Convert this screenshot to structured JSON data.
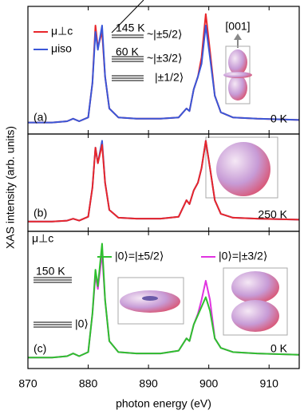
{
  "chart_data": [
    {
      "type": "line",
      "xlim": [
        870,
        915
      ],
      "ylim": [
        0,
        1
      ],
      "x": [
        870,
        874,
        876.5,
        877.5,
        878.5,
        880,
        880.7,
        881.2,
        881.6,
        882.3,
        882.8,
        883.5,
        885,
        888,
        892,
        895,
        896.3,
        896.8,
        897.5,
        898.2,
        898.8,
        899.5,
        900.2,
        901,
        902,
        904,
        908,
        915
      ],
      "series": [
        {
          "name": "μ⊥c",
          "color": "#e8262b",
          "values": [
            0.09,
            0.09,
            0.1,
            0.12,
            0.1,
            0.13,
            0.4,
            0.85,
            0.68,
            0.8,
            0.45,
            0.2,
            0.13,
            0.12,
            0.12,
            0.13,
            0.2,
            0.18,
            0.35,
            0.45,
            0.6,
            0.94,
            0.65,
            0.3,
            0.17,
            0.13,
            0.12,
            0.11
          ]
        },
        {
          "name": "μiso",
          "color": "#3a57d8",
          "values": [
            0.09,
            0.09,
            0.1,
            0.12,
            0.1,
            0.13,
            0.4,
            0.8,
            0.66,
            0.85,
            0.45,
            0.2,
            0.13,
            0.12,
            0.12,
            0.13,
            0.2,
            0.18,
            0.35,
            0.45,
            0.55,
            0.85,
            0.6,
            0.3,
            0.17,
            0.13,
            0.12,
            0.11
          ]
        }
      ],
      "annotations": [
        "145 K",
        "~|±5/2⟩",
        "60 K",
        "~|±3/2⟩",
        "|±1/2⟩",
        "[001]",
        "(a)",
        "0 K"
      ]
    },
    {
      "type": "line",
      "xlim": [
        870,
        915
      ],
      "ylim": [
        0,
        1
      ],
      "ylabel": "XAS intensity (arb. units)",
      "x": [
        870,
        874,
        876.5,
        877.5,
        878.5,
        880,
        880.7,
        881.2,
        881.6,
        882.3,
        882.8,
        883.5,
        885,
        888,
        892,
        895,
        896.3,
        896.8,
        897.5,
        898.2,
        898.8,
        899.5,
        900.2,
        901,
        902,
        904,
        908,
        915
      ],
      "series": [
        {
          "color": "#3a57d8",
          "values": [
            0.1,
            0.1,
            0.11,
            0.13,
            0.11,
            0.15,
            0.45,
            0.86,
            0.7,
            0.93,
            0.5,
            0.22,
            0.14,
            0.13,
            0.13,
            0.15,
            0.32,
            0.28,
            0.42,
            0.5,
            0.65,
            0.93,
            0.65,
            0.32,
            0.18,
            0.14,
            0.13,
            0.12
          ]
        },
        {
          "color": "#e8262b",
          "values": [
            0.1,
            0.1,
            0.11,
            0.13,
            0.11,
            0.15,
            0.45,
            0.86,
            0.7,
            0.89,
            0.5,
            0.22,
            0.14,
            0.13,
            0.13,
            0.15,
            0.32,
            0.28,
            0.42,
            0.5,
            0.65,
            0.93,
            0.65,
            0.32,
            0.18,
            0.14,
            0.13,
            0.12
          ]
        }
      ],
      "annotations": [
        "(b)",
        "250 K"
      ]
    },
    {
      "type": "line",
      "xlim": [
        870,
        915
      ],
      "ylim": [
        0,
        1
      ],
      "xlabel": "photon energy (eV)",
      "xticks": [
        870,
        880,
        890,
        900,
        910
      ],
      "x": [
        870,
        874,
        876.5,
        877.5,
        878.5,
        880,
        880.7,
        881.2,
        881.6,
        882.3,
        882.8,
        883.5,
        885,
        888,
        892,
        895,
        896.3,
        896.8,
        897.5,
        898.2,
        898.8,
        899.5,
        900.2,
        901,
        902,
        904,
        908,
        915
      ],
      "series": [
        {
          "name": "|0⟩=|±3/2⟩",
          "color": "#e033e0",
          "values": [
            0.08,
            0.08,
            0.09,
            0.11,
            0.09,
            0.12,
            0.4,
            0.68,
            0.58,
            0.84,
            0.5,
            0.2,
            0.12,
            0.11,
            0.11,
            0.13,
            0.22,
            0.2,
            0.32,
            0.4,
            0.5,
            0.64,
            0.5,
            0.22,
            0.15,
            0.12,
            0.11,
            0.1
          ]
        },
        {
          "name": "|0⟩=|±5/2⟩",
          "color": "#2ec02e",
          "values": [
            0.08,
            0.08,
            0.09,
            0.11,
            0.09,
            0.12,
            0.4,
            0.72,
            0.6,
            0.91,
            0.5,
            0.2,
            0.12,
            0.11,
            0.11,
            0.13,
            0.22,
            0.2,
            0.32,
            0.39,
            0.45,
            0.52,
            0.42,
            0.22,
            0.15,
            0.12,
            0.11,
            0.1
          ]
        }
      ],
      "annotations": [
        "μ⊥c",
        "150 K",
        "|0⟩",
        "(c)",
        "0 K"
      ]
    }
  ]
}
